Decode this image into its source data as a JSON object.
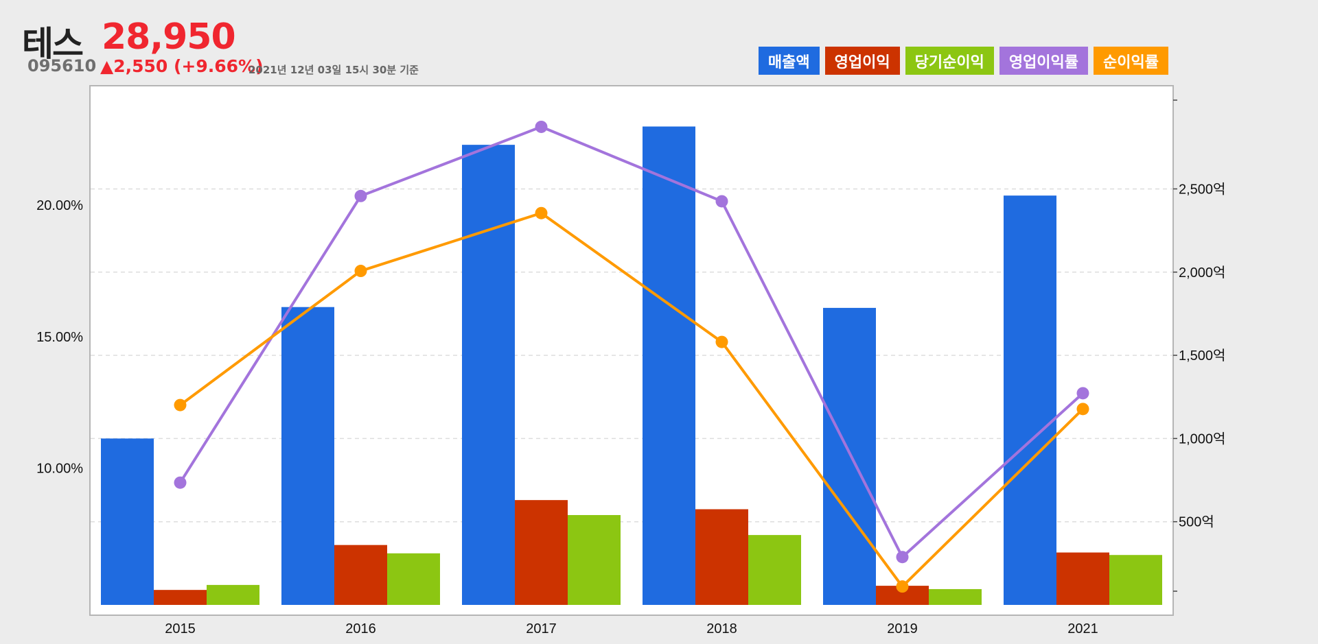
{
  "stock": {
    "name": "테스",
    "price": "28,950",
    "code": "095610",
    "change": "▲2,550 (+9.66%)",
    "as_of": "2021년 12년 03일 15시 30분 기준"
  },
  "chart_data": {
    "type": "bar",
    "title": "",
    "categories": [
      "2015",
      "2016",
      "2017",
      "2018",
      "2019",
      "2021"
    ],
    "series": [
      {
        "name": "매출액",
        "kind": "bar",
        "axis": "right",
        "color": "#1f6be0",
        "values": [
          1000,
          1790,
          2765,
          2875,
          1785,
          2460
        ]
      },
      {
        "name": "영업이익",
        "kind": "bar",
        "axis": "right",
        "color": "#cc3300",
        "values": [
          90,
          360,
          630,
          575,
          115,
          315
        ]
      },
      {
        "name": "당기순이익",
        "kind": "bar",
        "axis": "right",
        "color": "#8cc612",
        "values": [
          120,
          310,
          540,
          420,
          95,
          300
        ]
      },
      {
        "name": "영업이익률",
        "kind": "line",
        "axis": "left",
        "color": "#a374dc",
        "values": [
          9.45,
          20.35,
          22.98,
          20.15,
          6.62,
          12.85
        ]
      },
      {
        "name": "순이익률",
        "kind": "line",
        "axis": "left",
        "color": "#ff9a00",
        "values": [
          12.4,
          17.5,
          19.7,
          14.8,
          5.5,
          12.25
        ]
      }
    ],
    "left_axis": {
      "ticks": [
        "10.00%",
        "15.00%",
        "20.00%"
      ],
      "tick_values": [
        10,
        15,
        20
      ],
      "range": [
        4.8,
        24.1
      ]
    },
    "right_axis": {
      "ticks": [
        "500억",
        "1,000억",
        "1,500억",
        "2,000억",
        "2,500억"
      ],
      "tick_values": [
        500,
        1000,
        1500,
        2000,
        2500
      ],
      "range": [
        0,
        3050
      ]
    },
    "grid": true,
    "legend_position": "top-right"
  }
}
